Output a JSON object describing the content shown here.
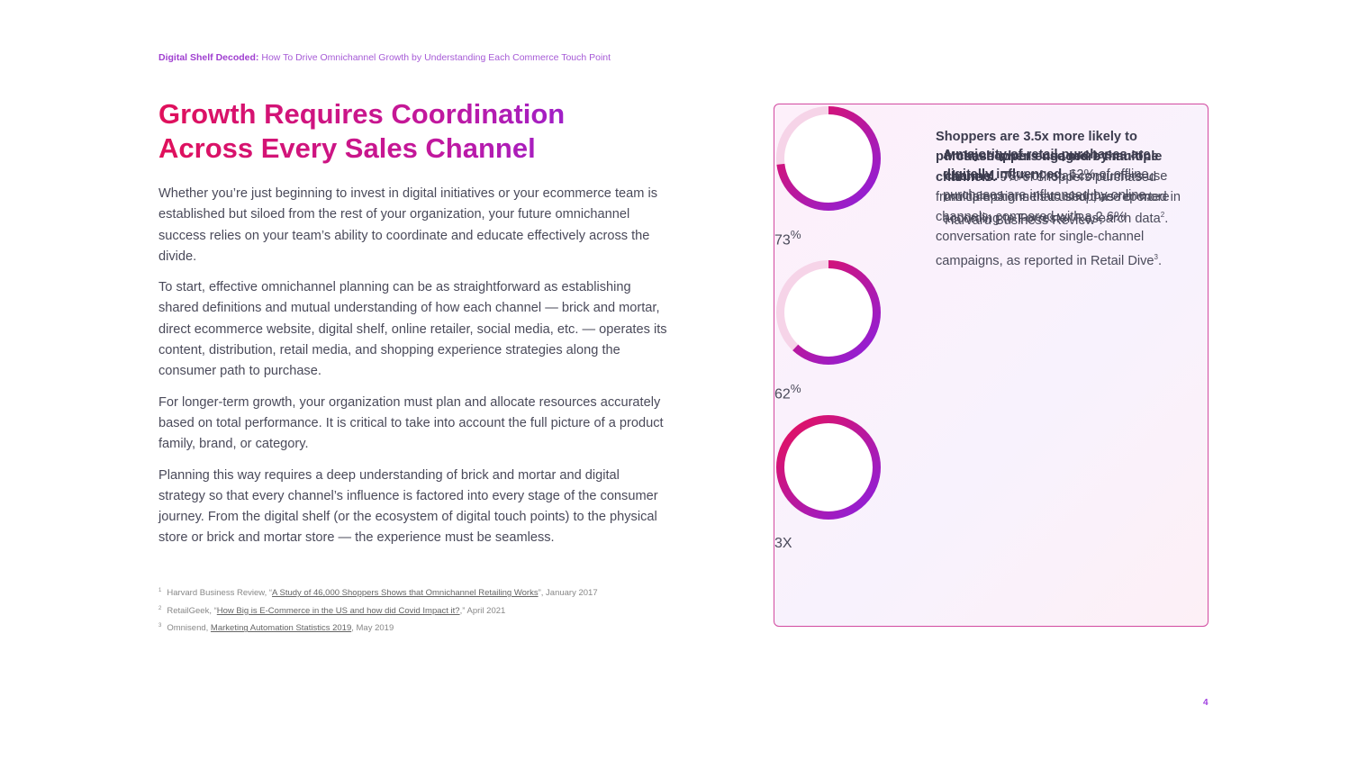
{
  "header": {
    "bold": "Digital Shelf Decoded:",
    "text": " How To Drive Omnichannel Growth by Understanding Each Commerce Touch Point"
  },
  "title": {
    "line1": "Growth Requires Coordination",
    "line2": "Across Every Sales Channel"
  },
  "paragraphs": [
    "Whether you’re just beginning to invest in digital initiatives or your ecommerce team is established but siloed from the rest of your organization, your future omnichannel success relies on your team’s ability to coordinate and educate effectively across the divide.",
    "To start, effective omnichannel planning can be as straightforward as establishing shared definitions and mutual understanding of how each channel — brick and mortar, direct ecommerce website, digital shelf, online retailer, social media, etc. — operates its content, distribution, retail media, and shopping experience strategies along the consumer path to purchase.",
    "For longer-term growth, your organization must plan and allocate resources accurately based on total performance. It is critical to take into account the full picture of a product family, brand, or category.",
    "Planning this way requires a deep understanding of brick and mortar and digital strategy so that every channel’s influence is factored into every stage of the consumer journey. From the digital shelf (or the ecosystem of digital touch points) to the physical store or brick and mortar store — the experience must be seamless."
  ],
  "footnotes": [
    {
      "num": "1",
      "before": "Harvard Business Review, “",
      "link": "A Study of 46,000 Shoppers Shows that Omnichannel Retailing Works",
      "after": "”, January 2017"
    },
    {
      "num": "2",
      "before": "RetailGeek, “",
      "link": "How Big is E-Commerce in the US and how did Covid Impact it?",
      "after": ",” April 2021"
    },
    {
      "num": "3",
      "before": "Omnisend, ",
      "link": "Marketing Automation Statistics 2019",
      "after": ", May 2019"
    }
  ],
  "stats": [
    {
      "value": 73,
      "unit": "%",
      "bold": "Most shoppers use more than one channel.",
      "text": " 73% of retail consumers use multiple channels to shop, as reported in Harvard Business Review",
      "sup": "1",
      "end": "."
    },
    {
      "value": 62,
      "unit": "%",
      "bold": "A majority of retail purchases are digitally influenced.",
      "text": " 62% of offline purchases are influenced by online, according to Forrester Research data",
      "sup": "2",
      "end": "."
    },
    {
      "value": "3X",
      "bold": "Shoppers are 3.5x more likely to purchase when engaged by multiple channels.",
      "text": " 9% of shoppers purchased from campaigns that used three or more channels, compared with a 2.6% conversation rate for single-channel campaigns, as reported in Retail Dive",
      "sup": "3",
      "end": "."
    }
  ],
  "page_number": "4"
}
